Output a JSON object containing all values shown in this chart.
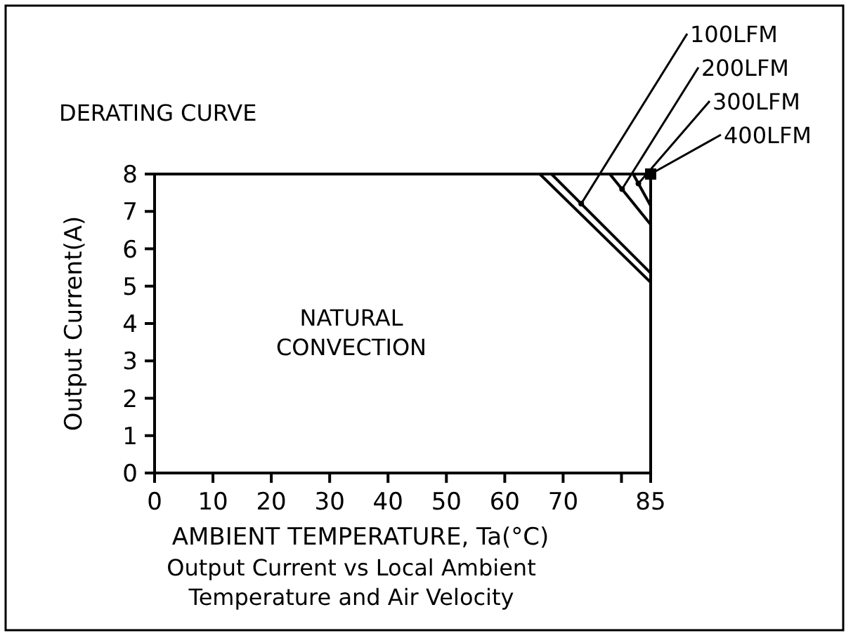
{
  "chart_data": {
    "type": "line",
    "title": "DERATING CURVE",
    "xlabel": "AMBIENT TEMPERATURE, Ta(°C)",
    "ylabel": "Output Current(A)",
    "xlim": [
      0,
      85
    ],
    "xticks": [
      0,
      10,
      20,
      30,
      40,
      50,
      60,
      70,
      {
        "value": 80,
        "label": null
      },
      85
    ],
    "ylim": [
      0,
      8
    ],
    "yticks": [
      0,
      1,
      2,
      3,
      4,
      5,
      6,
      7,
      8
    ],
    "marker": "none",
    "line_style": "solid",
    "grid": false,
    "series": [
      {
        "color": "#000000",
        "x": [
          66,
          85
        ],
        "values": [
          8,
          5.1
        ]
      },
      {
        "name": "100LFM",
        "color": "#000000",
        "x": [
          68,
          85
        ],
        "values": [
          8,
          5.35
        ]
      },
      {
        "name": "200LFM",
        "color": "#000000",
        "x": [
          78,
          85
        ],
        "values": [
          8,
          6.65
        ]
      },
      {
        "name": "300LFM",
        "color": "#000000",
        "x": [
          82,
          85
        ],
        "values": [
          8,
          7.15
        ]
      },
      {
        "name": "400LFM",
        "type": "scatter",
        "marker": "square",
        "color": "#000000",
        "x": [
          85
        ],
        "values": [
          8
        ]
      }
    ],
    "annotations": [
      "NATURAL\nCONVECTION",
      "Output Current vs  Local Ambient\nTemperature and Air Velocity"
    ]
  }
}
